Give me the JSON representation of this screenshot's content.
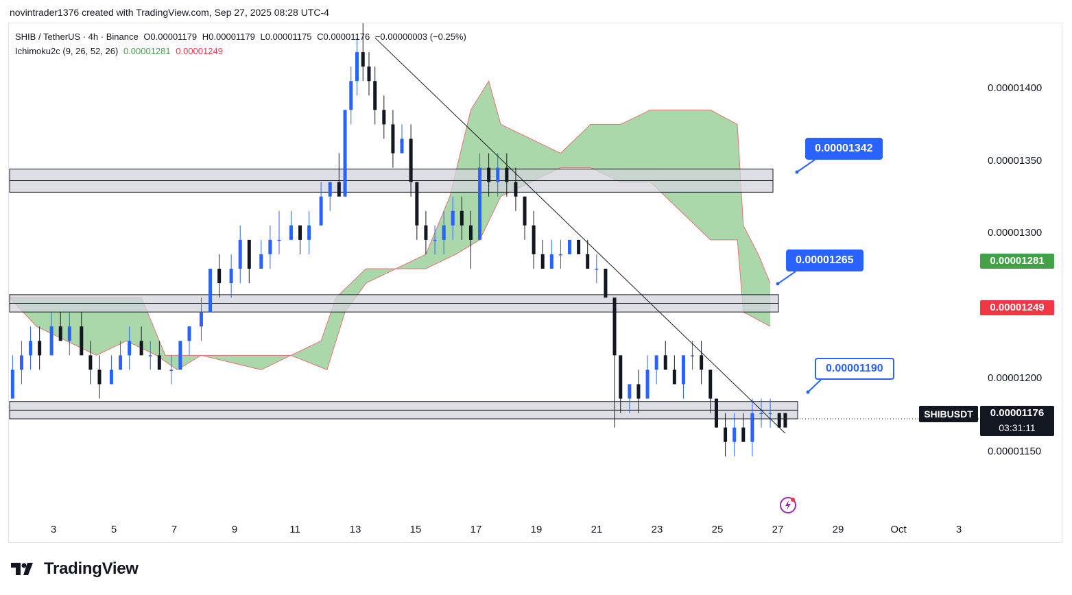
{
  "header": {
    "credit": "novintrader1376 created with TradingView.com, Sep 27, 2025 08:28 UTC-4"
  },
  "legend": {
    "symbol": "SHIB / TetherUS · 4h · Binance",
    "open": "O0.00001179",
    "high": "H0.00001179",
    "low": "L0.00001175",
    "close": "C0.00001176",
    "change": "−0.00000003 (−0.25%)",
    "indicator": "Ichimoku2c (9, 26, 52, 26)",
    "ind_val1": "0.00001281",
    "ind_val2": "0.00001249"
  },
  "price_axis": {
    "labels": [
      "0.00001400",
      "0.00001350",
      "0.00001300",
      "0.00001200",
      "0.00001150"
    ],
    "cloud_top_badge": "0.00001281",
    "cloud_bottom_badge": "0.00001249",
    "symbol_tag": "SHIBUSDT",
    "last_price": "0.00001176",
    "countdown": "03:31:11"
  },
  "time_axis": {
    "labels": [
      "3",
      "5",
      "7",
      "9",
      "11",
      "13",
      "15",
      "17",
      "19",
      "21",
      "23",
      "25",
      "27",
      "29",
      "Oct",
      "3"
    ]
  },
  "callouts": {
    "upper": "0.00001342",
    "middle": "0.00001265",
    "lower": "0.00001190"
  },
  "branding": {
    "name": "TradingView"
  },
  "colors": {
    "up": "#2962ff",
    "down": "#131722",
    "cloud": "#a5d6a7",
    "cloud_border": "#e57373",
    "zone": "#d1d4dc"
  },
  "chart_data": {
    "type": "candlestick",
    "timeframe": "4h",
    "y_range": [
      1.11e-05,
      1.45e-05
    ],
    "x_range_days": [
      1.6,
      33.8
    ],
    "zones": [
      {
        "low": 1.333e-05,
        "high": 1.349e-05
      },
      {
        "low": 1.25e-05,
        "high": 1.262e-05
      },
      {
        "low": 1.176e-05,
        "high": 1.188e-05
      }
    ],
    "trendline": [
      {
        "day": 13.8,
        "price": 1.44e-05
      },
      {
        "day": 27.5,
        "price": 1.166e-05
      }
    ],
    "cloud": {
      "upper": [
        [
          1.6,
          1.26e-05
        ],
        [
          5,
          1.26e-05
        ],
        [
          6,
          1.26e-05
        ],
        [
          6.8,
          1.22e-05
        ],
        [
          8,
          1.22e-05
        ],
        [
          10,
          1.22e-05
        ],
        [
          11,
          1.22e-05
        ],
        [
          12,
          1.23e-05
        ],
        [
          12.5,
          1.26e-05
        ],
        [
          13.5,
          1.28e-05
        ],
        [
          14.5,
          1.28e-05
        ],
        [
          15.5,
          1.29e-05
        ],
        [
          16.3,
          1.33e-05
        ],
        [
          17,
          1.39e-05
        ],
        [
          17.6,
          1.41e-05
        ],
        [
          18,
          1.38e-05
        ],
        [
          19,
          1.37e-05
        ],
        [
          20,
          1.36e-05
        ],
        [
          21,
          1.38e-05
        ],
        [
          22,
          1.38e-05
        ],
        [
          23,
          1.39e-05
        ],
        [
          24,
          1.39e-05
        ],
        [
          25,
          1.39e-05
        ],
        [
          25.9,
          1.38e-05
        ],
        [
          26.1,
          1.31e-05
        ],
        [
          26.6,
          1.29e-05
        ],
        [
          27,
          1.27e-05
        ]
      ],
      "lower": [
        [
          1.6,
          1.26e-05
        ],
        [
          2.5,
          1.24e-05
        ],
        [
          3.5,
          1.23e-05
        ],
        [
          4.5,
          1.22e-05
        ],
        [
          5.5,
          1.23e-05
        ],
        [
          6.5,
          1.22e-05
        ],
        [
          7.2,
          1.21e-05
        ],
        [
          8,
          1.22e-05
        ],
        [
          10,
          1.21e-05
        ],
        [
          11,
          1.22e-05
        ],
        [
          12.2,
          1.21e-05
        ],
        [
          12.8,
          1.25e-05
        ],
        [
          13.5,
          1.27e-05
        ],
        [
          14.5,
          1.28e-05
        ],
        [
          15.5,
          1.28e-05
        ],
        [
          16.5,
          1.29e-05
        ],
        [
          17.3,
          1.3e-05
        ],
        [
          18,
          1.33e-05
        ],
        [
          19,
          1.34e-05
        ],
        [
          20,
          1.35e-05
        ],
        [
          21,
          1.35e-05
        ],
        [
          22,
          1.34e-05
        ],
        [
          23,
          1.34e-05
        ],
        [
          24,
          1.32e-05
        ],
        [
          25,
          1.3e-05
        ],
        [
          25.9,
          1.3e-05
        ],
        [
          26.1,
          1.25e-05
        ],
        [
          27,
          1.24e-05
        ]
      ]
    },
    "candles": [
      [
        1.7,
        1.19e-05,
        1.22e-05,
        1.19e-05,
        1.21e-05
      ],
      [
        2.0,
        1.21e-05,
        1.23e-05,
        1.2e-05,
        1.22e-05
      ],
      [
        2.3,
        1.22e-05,
        1.24e-05,
        1.21e-05,
        1.23e-05
      ],
      [
        2.6,
        1.23e-05,
        1.24e-05,
        1.21e-05,
        1.22e-05
      ],
      [
        3.0,
        1.22e-05,
        1.25e-05,
        1.22e-05,
        1.24e-05
      ],
      [
        3.3,
        1.24e-05,
        1.25e-05,
        1.23e-05,
        1.23e-05
      ],
      [
        3.6,
        1.23e-05,
        1.25e-05,
        1.22e-05,
        1.24e-05
      ],
      [
        4.0,
        1.24e-05,
        1.25e-05,
        1.22e-05,
        1.22e-05
      ],
      [
        4.3,
        1.22e-05,
        1.23e-05,
        1.2e-05,
        1.21e-05
      ],
      [
        4.6,
        1.21e-05,
        1.22e-05,
        1.19e-05,
        1.2e-05
      ],
      [
        5.0,
        1.2e-05,
        1.22e-05,
        1.2e-05,
        1.21e-05
      ],
      [
        5.3,
        1.21e-05,
        1.23e-05,
        1.21e-05,
        1.22e-05
      ],
      [
        5.6,
        1.22e-05,
        1.24e-05,
        1.21e-05,
        1.23e-05
      ],
      [
        6.0,
        1.23e-05,
        1.24e-05,
        1.22e-05,
        1.22e-05
      ],
      [
        6.3,
        1.22e-05,
        1.23e-05,
        1.21e-05,
        1.22e-05
      ],
      [
        6.6,
        1.22e-05,
        1.23e-05,
        1.21e-05,
        1.21e-05
      ],
      [
        7.0,
        1.21e-05,
        1.22e-05,
        1.2e-05,
        1.21e-05
      ],
      [
        7.3,
        1.21e-05,
        1.23e-05,
        1.21e-05,
        1.23e-05
      ],
      [
        7.6,
        1.23e-05,
        1.24e-05,
        1.22e-05,
        1.24e-05
      ],
      [
        8.0,
        1.24e-05,
        1.26e-05,
        1.23e-05,
        1.25e-05
      ],
      [
        8.3,
        1.25e-05,
        1.28e-05,
        1.25e-05,
        1.28e-05
      ],
      [
        8.6,
        1.28e-05,
        1.29e-05,
        1.26e-05,
        1.27e-05
      ],
      [
        9.0,
        1.27e-05,
        1.29e-05,
        1.26e-05,
        1.28e-05
      ],
      [
        9.3,
        1.28e-05,
        1.31e-05,
        1.27e-05,
        1.3e-05
      ],
      [
        9.6,
        1.3e-05,
        1.3e-05,
        1.27e-05,
        1.28e-05
      ],
      [
        10.0,
        1.28e-05,
        1.3e-05,
        1.28e-05,
        1.29e-05
      ],
      [
        10.3,
        1.29e-05,
        1.31e-05,
        1.28e-05,
        1.3e-05
      ],
      [
        10.6,
        1.3e-05,
        1.32e-05,
        1.29e-05,
        1.3e-05
      ],
      [
        11.0,
        1.3e-05,
        1.32e-05,
        1.3e-05,
        1.31e-05
      ],
      [
        11.3,
        1.31e-05,
        1.31e-05,
        1.29e-05,
        1.3e-05
      ],
      [
        11.6,
        1.3e-05,
        1.32e-05,
        1.29e-05,
        1.31e-05
      ],
      [
        12.0,
        1.31e-05,
        1.34e-05,
        1.31e-05,
        1.33e-05
      ],
      [
        12.3,
        1.33e-05,
        1.34e-05,
        1.32e-05,
        1.34e-05
      ],
      [
        12.6,
        1.34e-05,
        1.36e-05,
        1.33e-05,
        1.33e-05
      ],
      [
        12.8,
        1.33e-05,
        1.39e-05,
        1.33e-05,
        1.39e-05
      ],
      [
        13.0,
        1.39e-05,
        1.42e-05,
        1.38e-05,
        1.41e-05
      ],
      [
        13.2,
        1.41e-05,
        1.44e-05,
        1.4e-05,
        1.43e-05
      ],
      [
        13.4,
        1.43e-05,
        1.45e-05,
        1.41e-05,
        1.42e-05
      ],
      [
        13.6,
        1.42e-05,
        1.43e-05,
        1.4e-05,
        1.41e-05
      ],
      [
        13.8,
        1.41e-05,
        1.42e-05,
        1.38e-05,
        1.39e-05
      ],
      [
        14.1,
        1.39e-05,
        1.4e-05,
        1.37e-05,
        1.38e-05
      ],
      [
        14.4,
        1.38e-05,
        1.39e-05,
        1.35e-05,
        1.36e-05
      ],
      [
        14.7,
        1.36e-05,
        1.38e-05,
        1.36e-05,
        1.37e-05
      ],
      [
        15.0,
        1.37e-05,
        1.38e-05,
        1.33e-05,
        1.34e-05
      ],
      [
        15.2,
        1.34e-05,
        1.34e-05,
        1.3e-05,
        1.31e-05
      ],
      [
        15.5,
        1.31e-05,
        1.32e-05,
        1.29e-05,
        1.3e-05
      ],
      [
        15.8,
        1.3e-05,
        1.31e-05,
        1.29e-05,
        1.3e-05
      ],
      [
        16.1,
        1.3e-05,
        1.32e-05,
        1.29e-05,
        1.31e-05
      ],
      [
        16.4,
        1.31e-05,
        1.33e-05,
        1.3e-05,
        1.32e-05
      ],
      [
        16.7,
        1.32e-05,
        1.33e-05,
        1.3e-05,
        1.31e-05
      ],
      [
        17.0,
        1.31e-05,
        1.32e-05,
        1.28e-05,
        1.3e-05
      ],
      [
        17.3,
        1.3e-05,
        1.36e-05,
        1.3e-05,
        1.35e-05
      ],
      [
        17.6,
        1.35e-05,
        1.36e-05,
        1.33e-05,
        1.34e-05
      ],
      [
        17.9,
        1.34e-05,
        1.36e-05,
        1.33e-05,
        1.35e-05
      ],
      [
        18.2,
        1.35e-05,
        1.36e-05,
        1.33e-05,
        1.34e-05
      ],
      [
        18.5,
        1.34e-05,
        1.35e-05,
        1.32e-05,
        1.33e-05
      ],
      [
        18.8,
        1.33e-05,
        1.33e-05,
        1.3e-05,
        1.31e-05
      ],
      [
        19.1,
        1.31e-05,
        1.32e-05,
        1.28e-05,
        1.29e-05
      ],
      [
        19.4,
        1.29e-05,
        1.3e-05,
        1.28e-05,
        1.28e-05
      ],
      [
        19.7,
        1.28e-05,
        1.3e-05,
        1.28e-05,
        1.29e-05
      ],
      [
        20.0,
        1.29e-05,
        1.3e-05,
        1.28e-05,
        1.29e-05
      ],
      [
        20.3,
        1.29e-05,
        1.3e-05,
        1.29e-05,
        1.3e-05
      ],
      [
        20.6,
        1.3e-05,
        1.3e-05,
        1.29e-05,
        1.29e-05
      ],
      [
        20.9,
        1.29e-05,
        1.3e-05,
        1.28e-05,
        1.28e-05
      ],
      [
        21.2,
        1.28e-05,
        1.29e-05,
        1.27e-05,
        1.28e-05
      ],
      [
        21.5,
        1.28e-05,
        1.28e-05,
        1.26e-05,
        1.26e-05
      ],
      [
        21.8,
        1.26e-05,
        1.26e-05,
        1.17e-05,
        1.22e-05
      ],
      [
        22.0,
        1.22e-05,
        1.22e-05,
        1.18e-05,
        1.19e-05
      ],
      [
        22.3,
        1.19e-05,
        1.2e-05,
        1.18e-05,
        1.2e-05
      ],
      [
        22.6,
        1.2e-05,
        1.21e-05,
        1.18e-05,
        1.19e-05
      ],
      [
        22.9,
        1.19e-05,
        1.22e-05,
        1.19e-05,
        1.21e-05
      ],
      [
        23.2,
        1.21e-05,
        1.22e-05,
        1.2e-05,
        1.22e-05
      ],
      [
        23.5,
        1.22e-05,
        1.23e-05,
        1.21e-05,
        1.21e-05
      ],
      [
        23.8,
        1.21e-05,
        1.22e-05,
        1.2e-05,
        1.2e-05
      ],
      [
        24.1,
        1.2e-05,
        1.22e-05,
        1.19e-05,
        1.22e-05
      ],
      [
        24.4,
        1.22e-05,
        1.23e-05,
        1.21e-05,
        1.22e-05
      ],
      [
        24.7,
        1.22e-05,
        1.23e-05,
        1.2e-05,
        1.21e-05
      ],
      [
        25.0,
        1.21e-05,
        1.21e-05,
        1.18e-05,
        1.19e-05
      ],
      [
        25.2,
        1.19e-05,
        1.19e-05,
        1.17e-05,
        1.17e-05
      ],
      [
        25.5,
        1.17e-05,
        1.18e-05,
        1.15e-05,
        1.16e-05
      ],
      [
        25.8,
        1.16e-05,
        1.18e-05,
        1.15e-05,
        1.17e-05
      ],
      [
        26.1,
        1.17e-05,
        1.18e-05,
        1.16e-05,
        1.16e-05
      ],
      [
        26.4,
        1.16e-05,
        1.19e-05,
        1.15e-05,
        1.18e-05
      ],
      [
        26.7,
        1.18e-05,
        1.19e-05,
        1.17e-05,
        1.18e-05
      ],
      [
        27.0,
        1.18e-05,
        1.19e-05,
        1.17e-05,
        1.18e-05
      ],
      [
        27.3,
        1.18e-05,
        1.18e-05,
        1.17e-05,
        1.17e-05
      ],
      [
        27.5,
        1.18e-05,
        1.18e-05,
        1.17e-05,
        1.17e-05
      ]
    ]
  }
}
